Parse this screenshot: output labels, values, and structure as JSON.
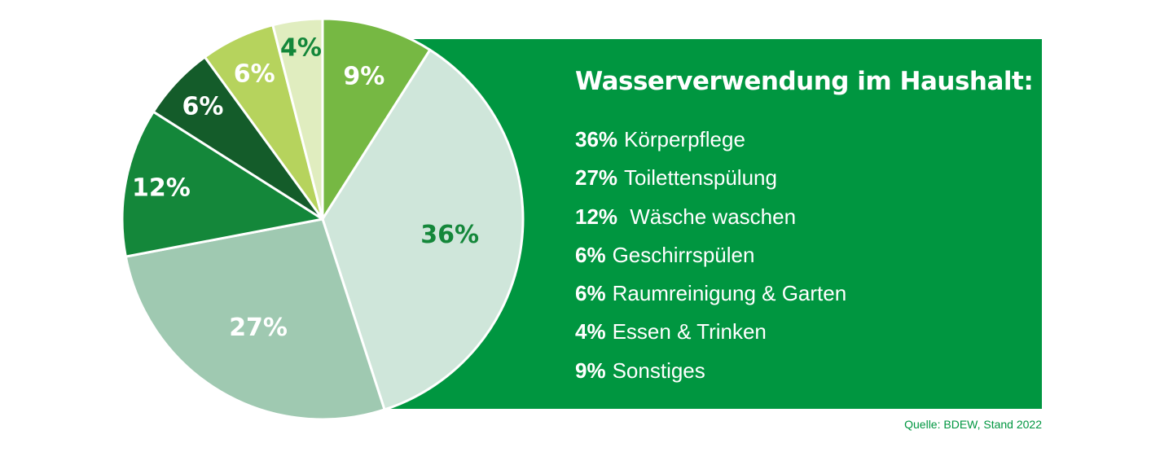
{
  "chart_data": {
    "type": "pie",
    "title": "Wasserverwendung im Haushalt:",
    "categories": [
      "Sonstiges",
      "Körperpflege",
      "Toilettenspülung",
      "Wäsche waschen",
      "Geschirrspülen",
      "Raumreinigung & Garten",
      "Essen & Trinken"
    ],
    "values": [
      9,
      36,
      27,
      12,
      6,
      6,
      4
    ],
    "slice_labels": [
      "9%",
      "36%",
      "27%",
      "12%",
      "6%",
      "6%",
      "4%"
    ],
    "slice_colors": [
      "#76b843",
      "#cfe6da",
      "#9fc9b1",
      "#14873a",
      "#145c2a",
      "#b6d35d",
      "#e0edbf"
    ],
    "label_colors": [
      "#ffffff",
      "#14873a",
      "#ffffff",
      "#ffffff",
      "#ffffff",
      "#ffffff",
      "#14873a"
    ],
    "start_angle_deg": 0,
    "direction": "clockwise",
    "legend_placement": "right"
  },
  "legend": {
    "title": "Wasserverwendung im Haushalt:",
    "items": [
      {
        "pct": "36%",
        "label": "Körperpflege"
      },
      {
        "pct": "27%",
        "label": "Toilettenspülung"
      },
      {
        "pct": "12%",
        "label": " Wäsche waschen"
      },
      {
        "pct": "6%",
        "label": "Geschirrspülen"
      },
      {
        "pct": "6%",
        "label": "Raumreinigung & Garten"
      },
      {
        "pct": "4%",
        "label": "Essen & Trinken"
      },
      {
        "pct": "9%",
        "label": "Sonstiges"
      }
    ]
  },
  "source": "Quelle: BDEW, Stand 2022",
  "colors": {
    "panel": "#009640",
    "text_light": "#ffffff",
    "source_text": "#009640",
    "slice_stroke": "#ffffff"
  }
}
